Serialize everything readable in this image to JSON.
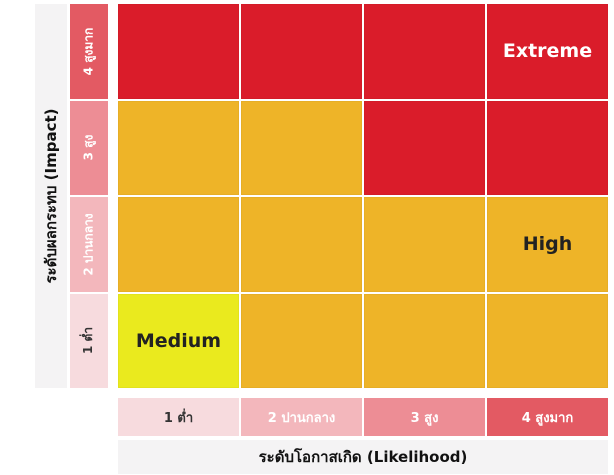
{
  "y_axis": {
    "title": "ระดับผลกระทบ (Impact)",
    "labels": [
      {
        "text": "4 สูงมาก",
        "bg": "#e35a63",
        "fg": "#ffffff"
      },
      {
        "text": "3 สูง",
        "bg": "#ed8d95",
        "fg": "#ffffff"
      },
      {
        "text": "2 ปานกลาง",
        "bg": "#f3b7bc",
        "fg": "#ffffff"
      },
      {
        "text": "1 ต่ำ",
        "bg": "#f7dbde",
        "fg": "#333333"
      }
    ]
  },
  "x_axis": {
    "title": "ระดับโอกาสเกิด (Likelihood)",
    "labels": [
      {
        "text": "1 ต่ำ",
        "bg": "#f7dbde",
        "fg": "#333333"
      },
      {
        "text": "2 ปานกลาง",
        "bg": "#f3b7bc",
        "fg": "#ffffff"
      },
      {
        "text": "3 สูง",
        "bg": "#ed8d95",
        "fg": "#ffffff"
      },
      {
        "text": "4 สูงมาก",
        "bg": "#e35a63",
        "fg": "#ffffff"
      }
    ]
  },
  "levels": {
    "extreme": {
      "color": "#da1c2a",
      "label_color": "#ffffff"
    },
    "high": {
      "color": "#eeb428",
      "label_color": "#222222"
    },
    "medium": {
      "color": "#eaea1e",
      "label_color": "#222222"
    }
  },
  "matrix": [
    [
      {
        "level": "extreme",
        "label": ""
      },
      {
        "level": "extreme",
        "label": ""
      },
      {
        "level": "extreme",
        "label": ""
      },
      {
        "level": "extreme",
        "label": "Extreme"
      }
    ],
    [
      {
        "level": "high",
        "label": ""
      },
      {
        "level": "high",
        "label": ""
      },
      {
        "level": "extreme",
        "label": ""
      },
      {
        "level": "extreme",
        "label": ""
      }
    ],
    [
      {
        "level": "high",
        "label": ""
      },
      {
        "level": "high",
        "label": ""
      },
      {
        "level": "high",
        "label": ""
      },
      {
        "level": "high",
        "label": "High"
      }
    ],
    [
      {
        "level": "medium",
        "label": "Medium"
      },
      {
        "level": "high",
        "label": ""
      },
      {
        "level": "high",
        "label": ""
      },
      {
        "level": "high",
        "label": ""
      }
    ]
  ]
}
